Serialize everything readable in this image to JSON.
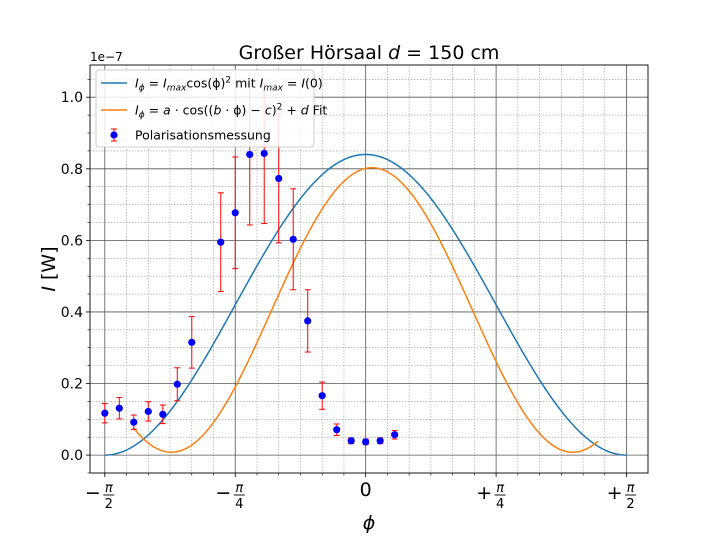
{
  "chart_data": {
    "type": "scatter",
    "title": "Großer Hörsaal d = 150 cm",
    "title_parts": {
      "text": "Großer Hörsaal ",
      "var": "d",
      "rest": " = 150 cm"
    },
    "xlabel": "ϕ",
    "ylabel": "I [W]",
    "ylabel_parts": {
      "var": "I",
      "unit": " [W]"
    },
    "y_scale_note": "1e−7",
    "y_unit_factor": 1e-07,
    "xlim": [
      -1.66,
      1.7
    ],
    "ylim": [
      -0.05,
      1.09
    ],
    "yticks": [
      0.0,
      0.2,
      0.4,
      0.6,
      0.8,
      1.0
    ],
    "ytick_labels": [
      "0.0",
      "0.2",
      "0.4",
      "0.6",
      "0.8",
      "1.0"
    ],
    "xticks": [
      {
        "value": -1.5708,
        "label": "−π/2",
        "sign": "−",
        "num": "π",
        "den": "2"
      },
      {
        "value": -0.7854,
        "label": "−π/4",
        "sign": "−",
        "num": "π",
        "den": "4"
      },
      {
        "value": 0.0,
        "label": "0",
        "sign": "",
        "num": "0",
        "den": ""
      },
      {
        "value": 0.7854,
        "label": "+π/4",
        "sign": "+",
        "num": "π",
        "den": "4"
      },
      {
        "value": 1.5708,
        "label": "+π/2",
        "sign": "+",
        "num": "π",
        "den": "2"
      }
    ],
    "grid": true,
    "legend_position": "top-left",
    "colors": {
      "theory": "#1f77b4",
      "fit": "#ff7f0e",
      "points": "#0000ff",
      "errorbars": "#ff0000",
      "major_grid": "#555555",
      "minor_grid": "#999999"
    },
    "series": [
      {
        "name": "I_ϕ = I_max cos(ϕ)² mit I_max = I(0)",
        "legend_parts": {
          "a": "I",
          "a_sub": "ϕ",
          "b": " = ",
          "c": "I",
          "c_sub": "max",
          "d": "cos(ϕ)",
          "d_sup": "2",
          "e": " mit ",
          "f": "I",
          "f_sub": "max",
          "g": " = ",
          "h": "I",
          "i": "(0)"
        },
        "kind": "line",
        "function": "cos2",
        "params": {
          "amplitude": 0.84
        },
        "x_range": [
          -1.5708,
          1.5708
        ]
      },
      {
        "name": "I_ϕ = a·cos((b·ϕ) − c)² + d Fit",
        "legend_parts": {
          "a": "I",
          "a_sub": "ϕ",
          "rest_pre": " = ",
          "b": "a",
          "c": " · cos((",
          "d": "b",
          "e": " · ϕ) − ",
          "f": "c",
          "g": ")",
          "g_sup": "2",
          "h": " + ",
          "i": "d",
          "j": " Fit"
        },
        "kind": "line",
        "function": "fit",
        "params": {
          "a": 0.795,
          "b": 1.3,
          "c": 0.05,
          "d": 0.008
        },
        "x_range": [
          -1.4,
          1.4
        ]
      },
      {
        "name": "Polarisationsmessung",
        "kind": "errorbar",
        "points": [
          {
            "x": -1.5708,
            "y": 0.117,
            "err": 0.027
          },
          {
            "x": -1.4835,
            "y": 0.131,
            "err": 0.03
          },
          {
            "x": -1.3963,
            "y": 0.092,
            "err": 0.02
          },
          {
            "x": -1.309,
            "y": 0.122,
            "err": 0.027
          },
          {
            "x": -1.2217,
            "y": 0.114,
            "err": 0.026
          },
          {
            "x": -1.1345,
            "y": 0.198,
            "err": 0.046
          },
          {
            "x": -1.0472,
            "y": 0.315,
            "err": 0.072
          },
          {
            "x": -0.8727,
            "y": 0.595,
            "err": 0.138
          },
          {
            "x": -0.7854,
            "y": 0.677,
            "err": 0.156
          },
          {
            "x": -0.6981,
            "y": 0.84,
            "err": 0.197
          },
          {
            "x": -0.6109,
            "y": 0.843,
            "err": 0.196
          },
          {
            "x": -0.5236,
            "y": 0.773,
            "err": 0.18
          },
          {
            "x": -0.4363,
            "y": 0.603,
            "err": 0.141
          },
          {
            "x": -0.3491,
            "y": 0.375,
            "err": 0.087
          },
          {
            "x": -0.2618,
            "y": 0.166,
            "err": 0.038
          },
          {
            "x": -0.1745,
            "y": 0.071,
            "err": 0.016
          },
          {
            "x": -0.0873,
            "y": 0.04,
            "err": 0.008
          },
          {
            "x": 0.0,
            "y": 0.037,
            "err": 0.008
          },
          {
            "x": 0.0873,
            "y": 0.04,
            "err": 0.008
          },
          {
            "x": 0.1745,
            "y": 0.057,
            "err": 0.012
          }
        ]
      }
    ]
  }
}
